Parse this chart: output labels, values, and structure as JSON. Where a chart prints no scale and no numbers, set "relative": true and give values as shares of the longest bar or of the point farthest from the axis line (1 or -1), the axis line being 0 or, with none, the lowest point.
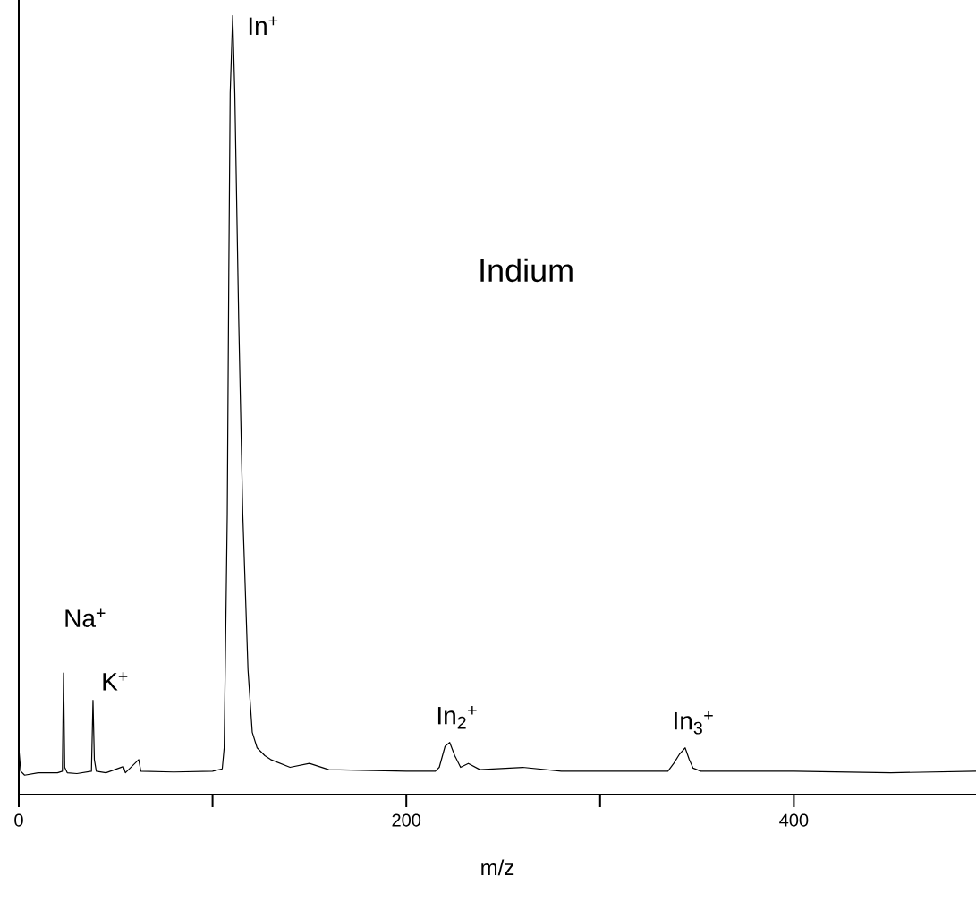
{
  "chart_data": {
    "type": "line",
    "xlabel": "m/z",
    "relative": true,
    "x": [
      0,
      1,
      3,
      10,
      20,
      22.5,
      23.1,
      23.7,
      25,
      30,
      37.5,
      38.3,
      39,
      40,
      45,
      54,
      55,
      61.9,
      63,
      80,
      100,
      105,
      106,
      107.6,
      108.4,
      109.1,
      110.4,
      111.5,
      113.5,
      115.6,
      118.3,
      120.5,
      123,
      127,
      130,
      140,
      150,
      160,
      200,
      215,
      217,
      220,
      222.4,
      225,
      228,
      232,
      238,
      260,
      280,
      335,
      338,
      341,
      343.9,
      346,
      348,
      352,
      400,
      450,
      494
    ],
    "values": [
      0.06,
      0.03,
      0.025,
      0.028,
      0.028,
      0.03,
      0.156,
      0.035,
      0.028,
      0.027,
      0.03,
      0.121,
      0.045,
      0.03,
      0.028,
      0.036,
      0.028,
      0.045,
      0.03,
      0.029,
      0.03,
      0.033,
      0.06,
      0.36,
      0.67,
      0.9,
      1.0,
      0.9,
      0.61,
      0.36,
      0.16,
      0.08,
      0.06,
      0.05,
      0.045,
      0.035,
      0.04,
      0.032,
      0.03,
      0.03,
      0.035,
      0.062,
      0.067,
      0.05,
      0.035,
      0.04,
      0.032,
      0.035,
      0.03,
      0.03,
      0.04,
      0.052,
      0.06,
      0.045,
      0.034,
      0.03,
      0.03,
      0.028,
      0.03
    ],
    "color": "#000000",
    "xlim": [
      0,
      494
    ],
    "xticks": [
      0,
      {
        "value": 100,
        "label": null
      },
      200,
      {
        "value": 300,
        "label": null
      },
      400
    ],
    "annotations": [
      "Indium",
      {
        "text": "Na$^{+}$",
        "x": 23.1,
        "y": 0.156
      },
      {
        "text": "K$^{+}$",
        "x": 38.3,
        "y": 0.121
      },
      {
        "text": "In$^{+}$",
        "x": 110.4,
        "y": 1.0
      },
      {
        "text": "In$_{2}$$^{+}$",
        "x": 222.4,
        "y": 0.067
      },
      {
        "text": "In$_{3}$$^{+}$",
        "x": 343.9,
        "y": 0.06
      }
    ]
  }
}
